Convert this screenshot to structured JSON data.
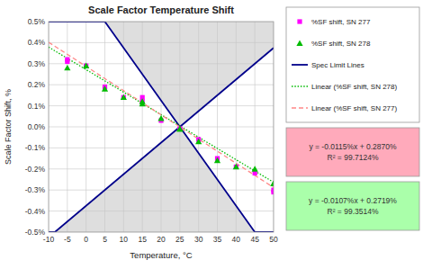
{
  "chart_data": {
    "type": "scatter",
    "title": "Scale Factor Temperature Shift",
    "x_label": "Temperature, °C",
    "y_label": "Scale Factor Shift, %",
    "xlim": [
      -10,
      50
    ],
    "ylim": [
      -0.5,
      0.5
    ],
    "xticks": [
      -10,
      -5,
      0,
      5,
      10,
      15,
      20,
      25,
      30,
      35,
      40,
      45,
      50
    ],
    "yticks": [
      {
        "value": -0.5,
        "label": "-0.5%"
      },
      {
        "value": -0.4,
        "label": "-0.4%"
      },
      {
        "value": -0.3,
        "label": "-0.3%"
      },
      {
        "value": -0.2,
        "label": "-0.2%"
      },
      {
        "value": -0.1,
        "label": "-0.1%"
      },
      {
        "value": 0.0,
        "label": "0.0%"
      },
      {
        "value": 0.1,
        "label": "0.1%"
      },
      {
        "value": 0.2,
        "label": "0.2%"
      },
      {
        "value": 0.3,
        "label": "0.3%"
      },
      {
        "value": 0.4,
        "label": "0.4%"
      },
      {
        "value": 0.5,
        "label": "0.5%"
      }
    ],
    "grid": true,
    "series": [
      {
        "name": "%SF shift, SN 277",
        "type": "scatter",
        "marker": "square",
        "color": "#ff00ff",
        "x": [
          -5,
          -5,
          0,
          5,
          10,
          15,
          15,
          20,
          25,
          25,
          30,
          35,
          40,
          45,
          50,
          50
        ],
        "values": [
          0.32,
          0.31,
          0.29,
          0.19,
          0.14,
          0.14,
          0.12,
          0.03,
          -0.01,
          -0.01,
          -0.06,
          -0.15,
          -0.19,
          -0.22,
          -0.3,
          -0.31
        ]
      },
      {
        "name": "%SF shift, SN 278",
        "type": "scatter",
        "marker": "triangle",
        "color": "#00bb00",
        "x": [
          -5,
          0,
          5,
          10,
          15,
          15,
          20,
          25,
          25,
          30,
          35,
          40,
          45,
          50,
          50
        ],
        "values": [
          0.28,
          0.29,
          0.18,
          0.14,
          0.12,
          0.11,
          0.04,
          -0.01,
          -0.01,
          -0.07,
          -0.16,
          -0.19,
          -0.2,
          -0.27,
          -0.27
        ]
      },
      {
        "name": "Spec Limit Lines",
        "type": "line",
        "line_style": "solid",
        "color": "#00008b",
        "x": [
          -10,
          5,
          45,
          50,
          null,
          -10,
          -8.333333333333334,
          50
        ],
        "values": [
          0.5,
          0.5,
          -0.5,
          -0.5,
          null,
          -0.5,
          -0.5,
          0.375
        ]
      },
      {
        "name": "Linear (%SF shift, SN 278)",
        "type": "line",
        "line_style": "dotted",
        "color": "#00bb00",
        "x": [
          -10,
          50
        ],
        "values": [
          0.3789,
          -0.2631
        ]
      },
      {
        "name": "Linear (%SF shift, SN 277)",
        "type": "line",
        "line_style": "dashed",
        "color": "#ff8888",
        "x": [
          -10,
          50
        ],
        "values": [
          0.402,
          -0.288
        ]
      }
    ],
    "annotations": [
      {
        "text": "y = -0.0115%x + 0.2870%\nR² = 99.7124%",
        "color": "#ffaabb"
      },
      {
        "text": "y = -0.0107%x + 0.2719%\nR² = 99.3514%",
        "color": "#aaffaa"
      }
    ]
  }
}
